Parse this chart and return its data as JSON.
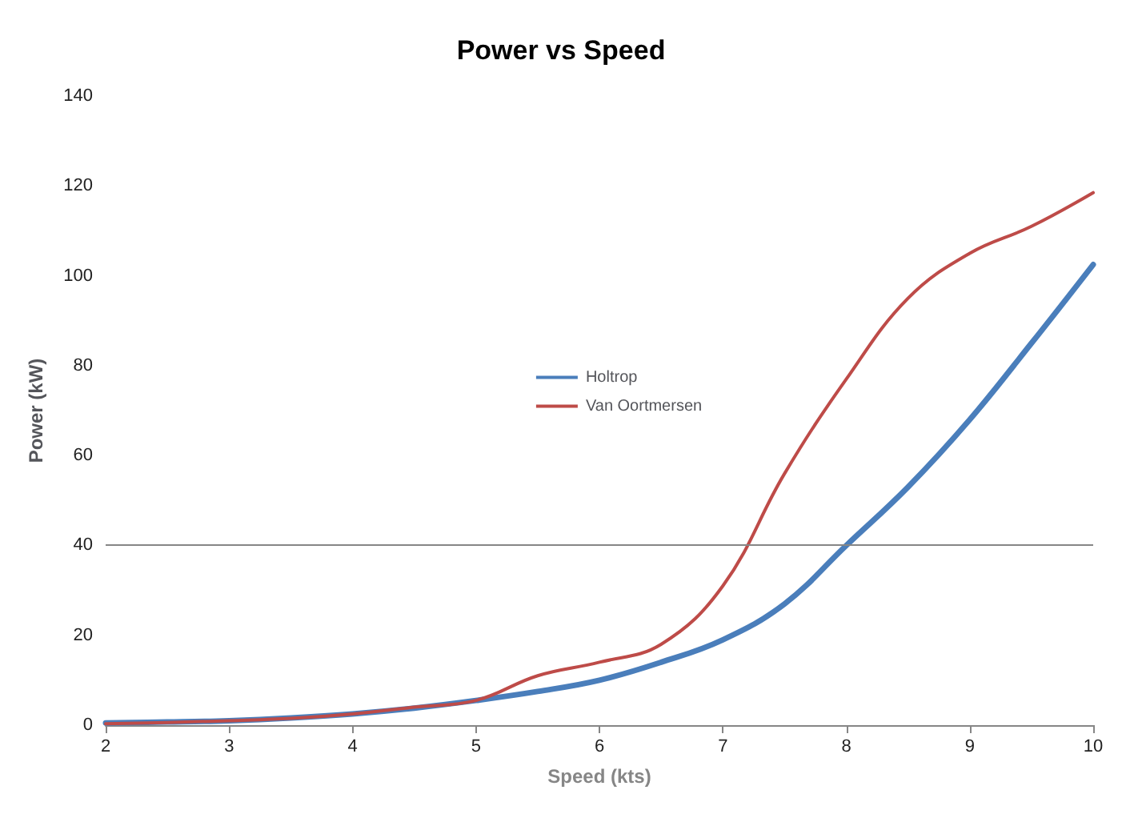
{
  "chart_data": {
    "type": "line",
    "title": "Power vs Speed",
    "xlabel": "Speed (kts)",
    "ylabel": "Power (kW)",
    "x": [
      2,
      2.5,
      3,
      3.5,
      4,
      4.5,
      5,
      5.5,
      6,
      6.5,
      7,
      7.5,
      8,
      8.5,
      9,
      9.5,
      10
    ],
    "series": [
      {
        "name": "Holtrop",
        "color": "#4a7ebb",
        "values": [
          0.5,
          0.7,
          1,
          1.6,
          2.5,
          3.8,
          5.5,
          7.5,
          10,
          14,
          19,
          27,
          40,
          53,
          68,
          85,
          102.5
        ]
      },
      {
        "name": "Van Oortmersen",
        "color": "#be4b48",
        "values": [
          0.3,
          0.6,
          1,
          1.5,
          2.5,
          4,
          5.5,
          11,
          14,
          18,
          31,
          56,
          77,
          95,
          105,
          111,
          118.5
        ]
      }
    ],
    "xlim": [
      2,
      10
    ],
    "xticks": [
      2,
      3,
      4,
      5,
      6,
      7,
      8,
      9,
      10
    ],
    "ylim": [
      0,
      140
    ],
    "yticks": [
      0,
      20,
      40,
      60,
      80,
      100,
      120,
      140
    ],
    "ref_lines": [
      {
        "axis": "y",
        "value": 40,
        "color": "#868686"
      }
    ],
    "grid": false,
    "legend": "center",
    "marker": "none",
    "line_style": "solid"
  }
}
